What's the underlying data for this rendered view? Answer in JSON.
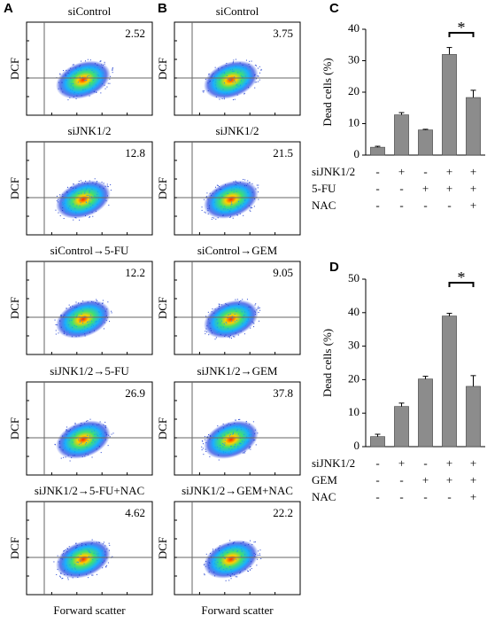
{
  "flow_panels": {
    "letters": [
      "A",
      "B"
    ],
    "y_label": "DCF",
    "x_label": "Forward scatter",
    "columns": [
      [
        {
          "title": "siControl",
          "value": "2.52"
        },
        {
          "title": "siJNK1/2",
          "value": "12.8"
        },
        {
          "title": "siControl→5-FU",
          "value": "12.2"
        },
        {
          "title": "siJNK1/2→5-FU",
          "value": "26.9"
        },
        {
          "title": "siJNK1/2→5-FU+NAC",
          "value": "4.62"
        }
      ],
      [
        {
          "title": "siControl",
          "value": "3.75"
        },
        {
          "title": "siJNK1/2",
          "value": "21.5"
        },
        {
          "title": "siControl→GEM",
          "value": "9.05"
        },
        {
          "title": "siJNK1/2→GEM",
          "value": "37.8"
        },
        {
          "title": "siJNK1/2→GEM+NAC",
          "value": "22.2"
        }
      ]
    ]
  },
  "chart_data": [
    {
      "type": "bar",
      "letter": "C",
      "y_label": "Dead cells (%)",
      "color": "#8c8c8c",
      "values": [
        2.5,
        12.8,
        8.0,
        32.0,
        18.3
      ],
      "errors": [
        0.3,
        0.7,
        0.2,
        2.2,
        2.3
      ],
      "ylim": [
        0,
        40
      ],
      "yticks": [
        0,
        10,
        20,
        30,
        40
      ],
      "annotation": "*",
      "conditions": [
        {
          "label": "siJNK1/2",
          "marks": [
            "-",
            "+",
            "-",
            "+",
            "+"
          ]
        },
        {
          "label": "5-FU",
          "marks": [
            "-",
            "-",
            "+",
            "+",
            "+"
          ]
        },
        {
          "label": "NAC",
          "marks": [
            "-",
            "-",
            "-",
            "-",
            "+"
          ]
        }
      ]
    },
    {
      "type": "bar",
      "letter": "D",
      "y_label": "Dead cells (%)",
      "color": "#8c8c8c",
      "values": [
        3.0,
        12.0,
        20.2,
        39.0,
        18.0
      ],
      "errors": [
        0.7,
        1.0,
        0.8,
        0.8,
        3.2
      ],
      "ylim": [
        0,
        50
      ],
      "yticks": [
        0,
        10,
        20,
        30,
        40,
        50
      ],
      "annotation": "*",
      "conditions": [
        {
          "label": "siJNK1/2",
          "marks": [
            "-",
            "+",
            "-",
            "+",
            "+"
          ]
        },
        {
          "label": "GEM",
          "marks": [
            "-",
            "-",
            "+",
            "+",
            "+"
          ]
        },
        {
          "label": "NAC",
          "marks": [
            "-",
            "-",
            "-",
            "-",
            "+"
          ]
        }
      ]
    }
  ]
}
